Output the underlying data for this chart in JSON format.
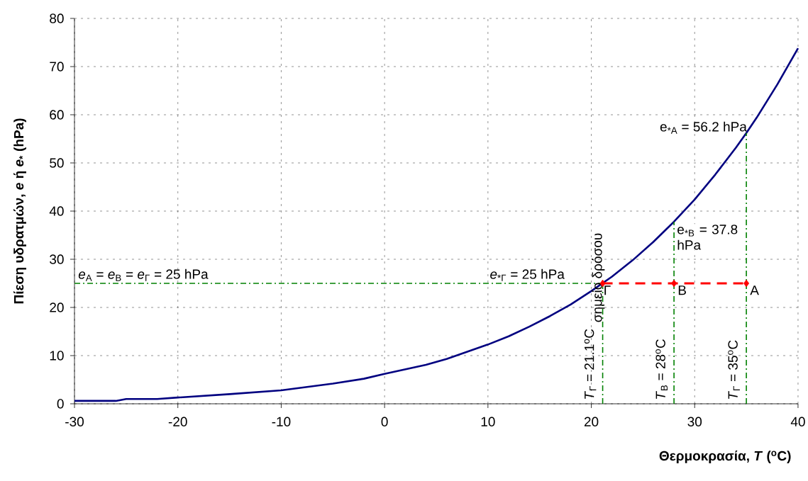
{
  "chart_data": {
    "type": "line",
    "xlabel": "Θερμοκρασία, *T* ($^{o}$C)",
    "ylabel": "Πίεση υδρατμών, *e* ή *e*$_{*}$ (hPa)",
    "xlim": [
      -30,
      40
    ],
    "ylim": [
      0,
      80
    ],
    "xticks": [
      -30,
      -20,
      -10,
      0,
      10,
      20,
      30,
      40
    ],
    "yticks": [
      0,
      10,
      20,
      30,
      40,
      50,
      60,
      70,
      80
    ],
    "grid": true,
    "series": [
      {
        "color": "#000080",
        "line_style": "solid",
        "marker": "none",
        "x": [
          -30,
          -26,
          -25,
          -22,
          -20,
          -15,
          -10,
          -5,
          -2,
          0,
          4,
          6,
          8,
          10,
          12,
          14,
          16,
          18,
          20,
          22,
          24,
          26,
          28,
          30,
          32,
          34,
          35,
          36,
          38,
          40
        ],
        "values": [
          0.6,
          0.6,
          1.0,
          1.0,
          1.3,
          2.0,
          2.8,
          4.2,
          5.2,
          6.2,
          8.1,
          9.3,
          10.8,
          12.3,
          14.0,
          16.0,
          18.2,
          20.6,
          23.4,
          26.4,
          29.8,
          33.6,
          37.8,
          42.4,
          47.6,
          53.2,
          56.2,
          59.4,
          66.3,
          73.8
        ]
      },
      {
        "color": "#008000",
        "line_style": "dashed",
        "marker": "none",
        "x": [
          -30,
          21.1
        ],
        "values": [
          25,
          25
        ]
      },
      {
        "color": "#008000",
        "line_style": "dashed",
        "marker": "none",
        "x": [
          21.1,
          21.1
        ],
        "values": [
          0,
          25
        ]
      },
      {
        "color": "#008000",
        "line_style": "dashed",
        "marker": "none",
        "x": [
          28,
          28
        ],
        "values": [
          0,
          37.8
        ]
      },
      {
        "color": "#008000",
        "line_style": "dashed",
        "marker": "none",
        "x": [
          35,
          35
        ],
        "values": [
          0,
          56.2
        ]
      },
      {
        "color": "#ff0000",
        "line_style": "dashed",
        "marker": "diamond",
        "x": [
          21.1,
          28,
          35
        ],
        "values": [
          25,
          25,
          25
        ]
      }
    ],
    "annotations": [
      "*e*$_{A}$ = *e*$_{B}$ = *e*$_{Γ}$ = 25 hPa",
      {
        "text": "*e*$_{*Γ}$ = 25 hPa",
        "x": 17.5,
        "y": 25
      },
      {
        "text": "e$_{*A}$ = 56.2 hPa",
        "x": 35,
        "y": 56.2
      },
      {
        "text": "e$_{*B}$ = 37.8 hPa",
        "x": 28,
        "y": 37.8
      },
      {
        "text": "σημείο δρόσου",
        "x": 21.1,
        "y": 25
      },
      {
        "text": "Γ",
        "x": 21.1,
        "y": 25
      },
      {
        "text": "Β",
        "x": 28,
        "y": 25
      },
      {
        "text": "Α",
        "x": 35,
        "y": 25
      },
      {
        "text": "*T*$_{Γ}$ = 21.1$^{o}$C",
        "x": 21.1,
        "y": 0
      },
      {
        "text": "*T*$_{B}$ = 28$^{o}$C",
        "x": 28,
        "y": 0
      },
      {
        "text": "*T*$_{Γ}$ = 35$^{o}$C",
        "x": 35,
        "y": 0
      }
    ]
  }
}
